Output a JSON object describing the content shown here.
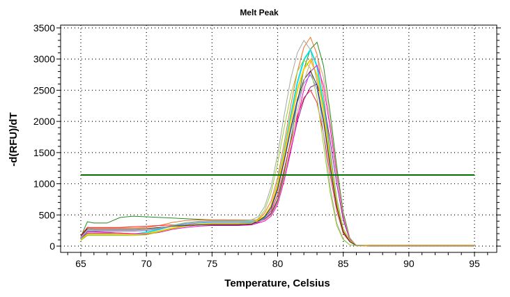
{
  "chart_data": {
    "type": "line",
    "title": "Melt Peak",
    "xlabel": "Temperature, Celsius",
    "ylabel": "-d(RFU)/dT",
    "xlim": [
      64,
      96
    ],
    "ylim": [
      -100,
      3600
    ],
    "xticks": [
      65,
      70,
      75,
      80,
      85,
      90,
      95
    ],
    "yticks": [
      0,
      500,
      1000,
      1500,
      2000,
      2500,
      3000,
      3500
    ],
    "grid": true,
    "grid_style": "dotted",
    "legend": "none",
    "threshold": {
      "value": 1140,
      "x_range": [
        65,
        95
      ],
      "color": "#007000"
    },
    "x": [
      65,
      65.5,
      66,
      67,
      68,
      69,
      70,
      71,
      72,
      73,
      74,
      75,
      76,
      77,
      78,
      78.5,
      79,
      79.5,
      80,
      80.5,
      81,
      81.5,
      82,
      82.5,
      83,
      83.5,
      84,
      84.5,
      85,
      85.5,
      86,
      87,
      90,
      95
    ],
    "series": [
      {
        "color": "#228B22",
        "values": [
          150,
          390,
          370,
          370,
          460,
          480,
          470,
          460,
          450,
          440,
          430,
          420,
          420,
          410,
          400,
          400,
          430,
          530,
          750,
          1180,
          1710,
          2300,
          2840,
          3160,
          3270,
          2890,
          2140,
          1280,
          540,
          130,
          10,
          5,
          5,
          5
        ]
      },
      {
        "color": "#F07020",
        "values": [
          140,
          300,
          290,
          290,
          290,
          290,
          300,
          330,
          380,
          410,
          420,
          420,
          420,
          420,
          420,
          420,
          530,
          720,
          1100,
          1650,
          2250,
          2800,
          3190,
          3350,
          3080,
          2420,
          1540,
          770,
          280,
          90,
          10,
          15,
          15,
          15
        ]
      },
      {
        "color": "#FF2020",
        "values": [
          170,
          300,
          300,
          300,
          300,
          310,
          320,
          330,
          340,
          350,
          350,
          350,
          350,
          350,
          360,
          400,
          450,
          560,
          820,
          1230,
          1680,
          2090,
          2380,
          2500,
          2300,
          1800,
          1150,
          570,
          200,
          70,
          10,
          15,
          15,
          15
        ]
      },
      {
        "color": "#8B1A9B",
        "values": [
          120,
          210,
          210,
          210,
          210,
          200,
          200,
          240,
          290,
          320,
          340,
          350,
          350,
          350,
          360,
          380,
          430,
          520,
          730,
          1120,
          1540,
          2000,
          2350,
          2550,
          2600,
          2300,
          1700,
          1000,
          420,
          100,
          10,
          5,
          5,
          5
        ]
      },
      {
        "color": "#00E5EE",
        "values": [
          110,
          180,
          180,
          180,
          180,
          190,
          220,
          270,
          330,
          370,
          390,
          400,
          400,
          400,
          400,
          400,
          470,
          640,
          1000,
          1520,
          2100,
          2620,
          2990,
          3150,
          2890,
          2270,
          1440,
          720,
          260,
          80,
          10,
          5,
          5,
          5
        ]
      },
      {
        "color": "#FFC800",
        "values": [
          100,
          190,
          190,
          190,
          190,
          190,
          200,
          240,
          290,
          330,
          350,
          360,
          360,
          360,
          370,
          410,
          480,
          640,
          980,
          1470,
          2010,
          2500,
          2840,
          2990,
          2740,
          2160,
          1370,
          690,
          250,
          80,
          10,
          5,
          5,
          5
        ]
      },
      {
        "color": "#FF00CC",
        "values": [
          130,
          230,
          230,
          220,
          210,
          200,
          190,
          220,
          270,
          300,
          320,
          330,
          330,
          330,
          340,
          370,
          400,
          480,
          670,
          1050,
          1520,
          2040,
          2520,
          2800,
          2900,
          2570,
          1900,
          1140,
          480,
          110,
          10,
          5,
          5,
          5
        ]
      },
      {
        "color": "#A0A8A0",
        "values": [
          140,
          260,
          250,
          250,
          250,
          250,
          260,
          290,
          330,
          370,
          400,
          410,
          410,
          410,
          420,
          470,
          630,
          950,
          1470,
          2100,
          2680,
          3100,
          3300,
          3150,
          2630,
          1790,
          950,
          370,
          110,
          20,
          10,
          5,
          5,
          5
        ]
      },
      {
        "color": "#6A7FFF",
        "values": [
          120,
          240,
          240,
          240,
          240,
          240,
          250,
          280,
          320,
          350,
          370,
          380,
          380,
          380,
          380,
          390,
          440,
          590,
          900,
          1350,
          1850,
          2300,
          2610,
          2750,
          2520,
          1980,
          1260,
          630,
          230,
          70,
          10,
          5,
          5,
          5
        ]
      },
      {
        "color": "#9ACD32",
        "values": [
          90,
          170,
          170,
          170,
          170,
          170,
          180,
          230,
          280,
          320,
          350,
          360,
          360,
          360,
          370,
          440,
          570,
          860,
          1330,
          1900,
          2420,
          2800,
          2990,
          2850,
          2380,
          1620,
          860,
          330,
          100,
          20,
          10,
          5,
          5,
          5
        ]
      },
      {
        "color": "#2F2F2F",
        "values": [
          160,
          280,
          270,
          270,
          270,
          270,
          280,
          300,
          320,
          330,
          340,
          340,
          340,
          340,
          350,
          400,
          470,
          620,
          920,
          1380,
          1890,
          2350,
          2670,
          2810,
          2580,
          2020,
          1290,
          640,
          230,
          70,
          10,
          5,
          5,
          5
        ]
      },
      {
        "color": "#D2A07A",
        "values": [
          150,
          250,
          250,
          250,
          250,
          250,
          260,
          290,
          330,
          370,
          390,
          400,
          400,
          400,
          400,
          390,
          420,
          500,
          700,
          1100,
          1600,
          2150,
          2650,
          2950,
          3050,
          2700,
          2000,
          1200,
          500,
          120,
          10,
          5,
          5,
          5
        ]
      }
    ]
  }
}
